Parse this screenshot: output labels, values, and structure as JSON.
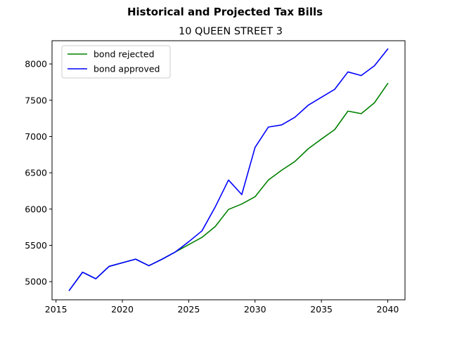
{
  "chart_data": {
    "type": "line",
    "suptitle": "Historical and Projected Tax Bills",
    "title": "10 QUEEN STREET  3",
    "xlabel": "",
    "ylabel": "",
    "xlim": [
      2014.7,
      2041.3
    ],
    "ylim": [
      4750,
      8320
    ],
    "xticks": [
      2015,
      2020,
      2025,
      2030,
      2035,
      2040
    ],
    "yticks": [
      5000,
      5500,
      6000,
      6500,
      7000,
      7500,
      8000
    ],
    "grid": false,
    "legend_position": "top-left",
    "x": [
      2016,
      2017,
      2018,
      2019,
      2020,
      2021,
      2022,
      2023,
      2024,
      2025,
      2026,
      2027,
      2028,
      2029,
      2030,
      2031,
      2032,
      2033,
      2034,
      2035,
      2036,
      2037,
      2038,
      2039,
      2040
    ],
    "series": [
      {
        "name": "bond rejected",
        "color": "#008000",
        "values": [
          4880,
          5130,
          5040,
          5210,
          5260,
          5310,
          5220,
          5310,
          5410,
          5510,
          5610,
          5760,
          5995,
          6070,
          6170,
          6400,
          6535,
          6655,
          6830,
          6965,
          7095,
          7350,
          7315,
          7465,
          7730
        ]
      },
      {
        "name": "bond approved",
        "color": "#0000ff",
        "values": [
          4880,
          5130,
          5040,
          5210,
          5260,
          5310,
          5220,
          5310,
          5410,
          5550,
          5700,
          6030,
          6400,
          6200,
          6850,
          7130,
          7160,
          7265,
          7430,
          7540,
          7650,
          7890,
          7840,
          7975,
          8205
        ]
      }
    ]
  }
}
